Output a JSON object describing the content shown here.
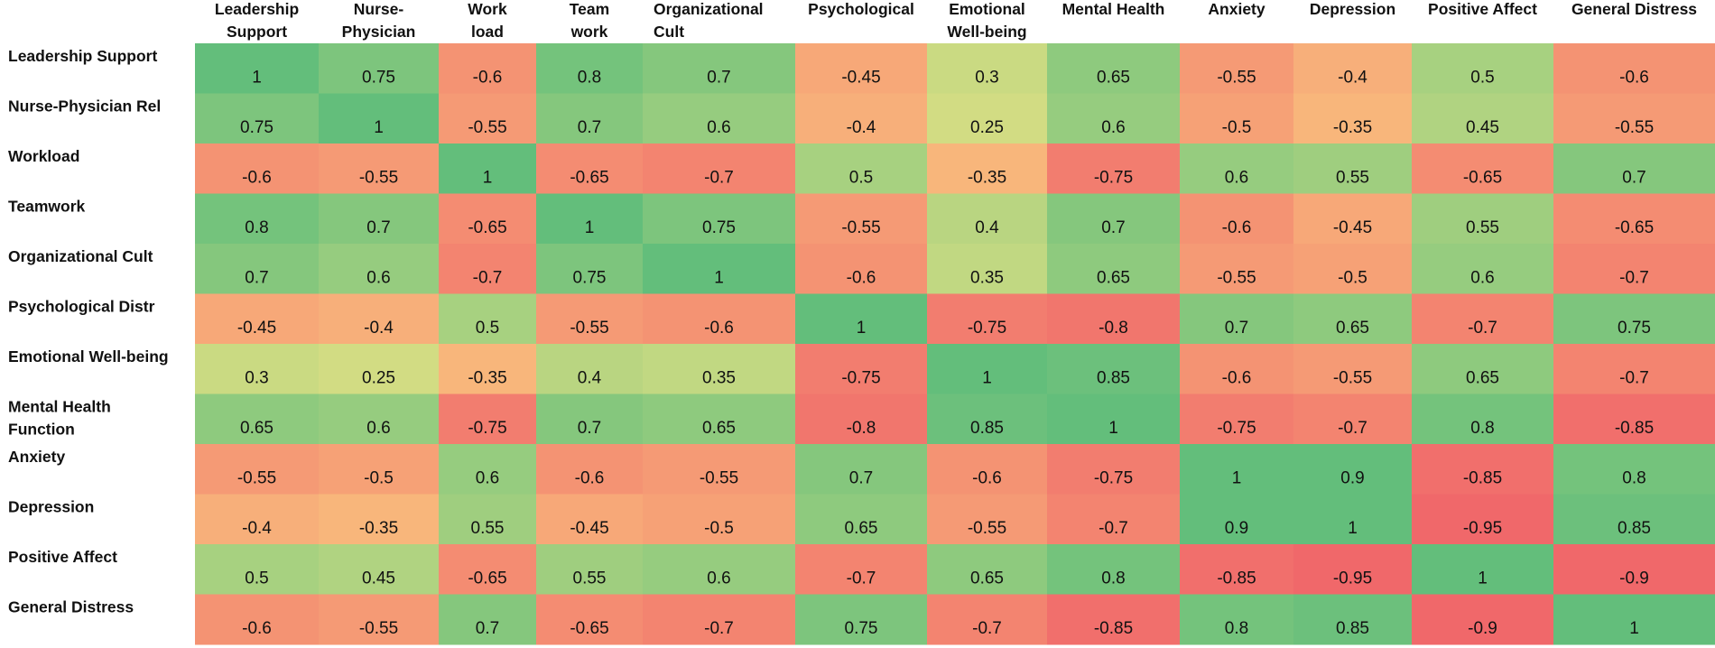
{
  "chart_data": {
    "type": "heatmap",
    "title": "",
    "xlabel": "",
    "ylabel": "",
    "color_scale": {
      "low": "#f0686a",
      "mid": "#fde886",
      "high": "#63be7b",
      "range": [
        -1,
        1
      ]
    },
    "x_labels": [
      [
        "Leadership",
        "Support"
      ],
      [
        "Nurse-",
        "Physician"
      ],
      [
        "Work",
        "load"
      ],
      [
        "Team",
        "work"
      ],
      [
        "Organizational",
        "Cult"
      ],
      [
        "Psychological"
      ],
      [
        "Emotional",
        "Well-being"
      ],
      [
        "Mental Health"
      ],
      [
        "Anxiety"
      ],
      [
        "Depression"
      ],
      [
        "Positive Affect"
      ],
      [
        "General Distress"
      ]
    ],
    "y_labels": [
      [
        "Leadership Support"
      ],
      [
        "Nurse-Physician Rel"
      ],
      [
        "Workload"
      ],
      [
        "Teamwork"
      ],
      [
        "Organizational Cult"
      ],
      [
        "Psychological Distr"
      ],
      [
        "Emotional Well-being"
      ],
      [
        "Mental Health",
        "Function"
      ],
      [
        "Anxiety"
      ],
      [
        "Depression"
      ],
      [
        "Positive Affect"
      ],
      [
        "General Distress"
      ]
    ],
    "values": [
      [
        1,
        0.75,
        -0.6,
        0.8,
        0.7,
        -0.45,
        0.3,
        0.65,
        -0.55,
        -0.4,
        0.5,
        -0.6
      ],
      [
        0.75,
        1,
        -0.55,
        0.7,
        0.6,
        -0.4,
        0.25,
        0.6,
        -0.5,
        -0.35,
        0.45,
        -0.55
      ],
      [
        -0.6,
        -0.55,
        1,
        -0.65,
        -0.7,
        0.5,
        -0.35,
        -0.75,
        0.6,
        0.55,
        -0.65,
        0.7
      ],
      [
        0.8,
        0.7,
        -0.65,
        1,
        0.75,
        -0.55,
        0.4,
        0.7,
        -0.6,
        -0.45,
        0.55,
        -0.65
      ],
      [
        0.7,
        0.6,
        -0.7,
        0.75,
        1,
        -0.6,
        0.35,
        0.65,
        -0.55,
        -0.5,
        0.6,
        -0.7
      ],
      [
        -0.45,
        -0.4,
        0.5,
        -0.55,
        -0.6,
        1,
        -0.75,
        -0.8,
        0.7,
        0.65,
        -0.7,
        0.75
      ],
      [
        0.3,
        0.25,
        -0.35,
        0.4,
        0.35,
        -0.75,
        1,
        0.85,
        -0.6,
        -0.55,
        0.65,
        -0.7
      ],
      [
        0.65,
        0.6,
        -0.75,
        0.7,
        0.65,
        -0.8,
        0.85,
        1,
        -0.75,
        -0.7,
        0.8,
        -0.85
      ],
      [
        -0.55,
        -0.5,
        0.6,
        -0.6,
        -0.55,
        0.7,
        -0.6,
        -0.75,
        1,
        0.9,
        -0.85,
        0.8
      ],
      [
        -0.4,
        -0.35,
        0.55,
        -0.45,
        -0.5,
        0.65,
        -0.55,
        -0.7,
        0.9,
        1,
        -0.95,
        0.85
      ],
      [
        0.5,
        0.45,
        -0.65,
        0.55,
        0.6,
        -0.7,
        0.65,
        0.8,
        -0.85,
        -0.95,
        1,
        -0.9
      ],
      [
        -0.6,
        -0.55,
        0.7,
        -0.65,
        -0.7,
        0.75,
        -0.7,
        -0.85,
        0.8,
        0.85,
        -0.9,
        1
      ]
    ]
  }
}
